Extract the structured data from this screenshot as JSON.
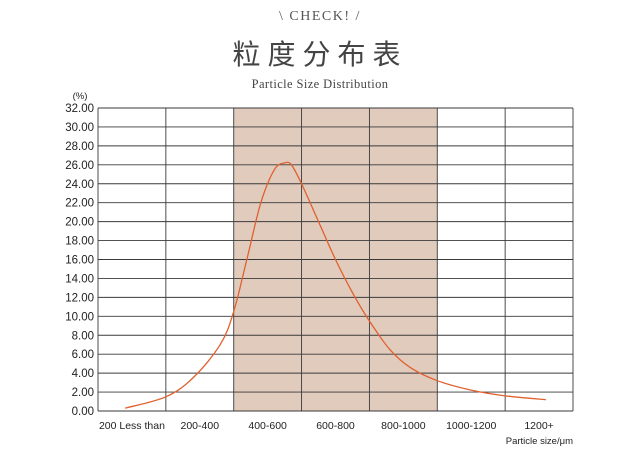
{
  "header": {
    "check": "\\ CHECK! /",
    "title": "粒度分布表",
    "subtitle": "Particle Size Distribution"
  },
  "chart_data": {
    "type": "line",
    "title": "粒度分布表",
    "subtitle": "Particle Size Distribution",
    "ylabel": "(%)",
    "xlabel": "Particle size/μm",
    "ylim": [
      0,
      32
    ],
    "y_ticks": [
      "0.00",
      "2.00",
      "4.00",
      "6.00",
      "8.00",
      "10.00",
      "12.00",
      "14.00",
      "16.00",
      "18.00",
      "20.00",
      "22.00",
      "24.00",
      "26.00",
      "28.00",
      "30.00",
      "32.00"
    ],
    "categories": [
      "200 Less than",
      "200-400",
      "400-600",
      "600-800",
      "800-1000",
      "1000-1200",
      "1200+"
    ],
    "highlighted_categories": [
      "400-600",
      "600-800",
      "800-1000"
    ],
    "highlight_color": "#e1cbbd",
    "line_color": "#e0602e",
    "grid": true,
    "series": [
      {
        "x": [
          0.4,
          1.0,
          1.4,
          1.8,
          2.0,
          2.2,
          2.4,
          2.6,
          2.75,
          2.85,
          3.0,
          3.25,
          3.5,
          3.75,
          4.0,
          4.3,
          4.6,
          5.0,
          5.5,
          6.0,
          6.6
        ],
        "values": [
          0.3,
          1.5,
          3.5,
          7.0,
          10.5,
          16.2,
          22.0,
          25.5,
          26.2,
          26.0,
          24.0,
          20.0,
          16.0,
          12.5,
          9.5,
          6.5,
          4.6,
          3.2,
          2.2,
          1.6,
          1.2
        ]
      }
    ]
  }
}
